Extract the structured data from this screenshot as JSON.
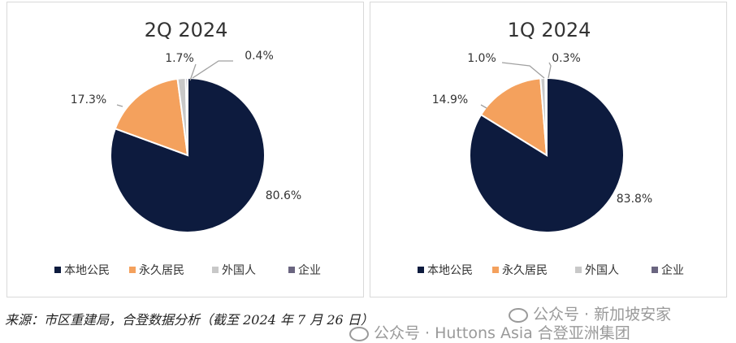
{
  "chart_data": [
    {
      "type": "pie",
      "title": "2Q 2024",
      "categories": [
        "本地公民",
        "永久居民",
        "外国人",
        "企业"
      ],
      "values": [
        80.6,
        17.3,
        1.7,
        0.4
      ],
      "labels": [
        "80.6%",
        "17.3%",
        "1.7%",
        "0.4%"
      ],
      "colors": [
        "#0d1b3e",
        "#f4a15d",
        "#c8c8c8",
        "#6a6580"
      ],
      "legend_position": "bottom"
    },
    {
      "type": "pie",
      "title": "1Q 2024",
      "categories": [
        "本地公民",
        "永久居民",
        "外国人",
        "企业"
      ],
      "values": [
        83.8,
        14.9,
        1.0,
        0.3
      ],
      "labels": [
        "83.8%",
        "14.9%",
        "1.0%",
        "0.3%"
      ],
      "colors": [
        "#0d1b3e",
        "#f4a15d",
        "#c8c8c8",
        "#6a6580"
      ],
      "legend_position": "bottom"
    }
  ],
  "source_note": "来源：市区重建局，合登数据分析（截至 2024 年 7 月 26 日）",
  "watermark": {
    "line1": "公众号 · 新加坡安家",
    "line2": "公众号 · Huttons Asia 合登亚洲集团"
  }
}
